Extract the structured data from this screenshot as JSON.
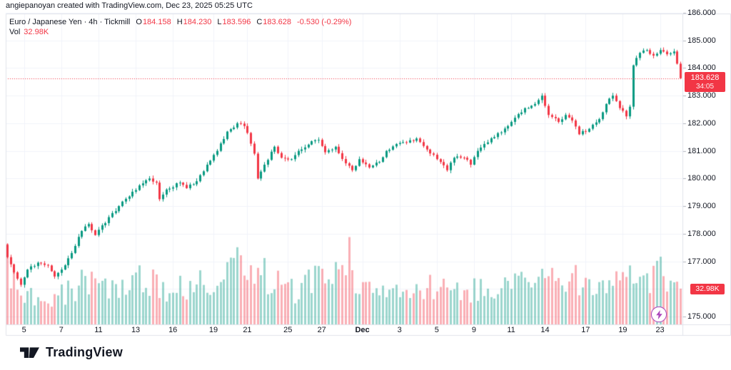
{
  "attribution": "angiepanoyan created with TradingView.com, Dec 23, 2025 05:25 UTC",
  "legend": {
    "title": "Euro / Japanese Yen · 4h · Tickmill",
    "o_label": "O",
    "o_value": "184.158",
    "h_label": "H",
    "h_value": "184.230",
    "l_label": "L",
    "l_value": "183.596",
    "c_label": "C",
    "c_value": "183.628",
    "change": "-0.530 (-0.29%)",
    "vol_label": "Vol",
    "vol_value": "32.98K"
  },
  "price_scale": {
    "last_price_badge": "183.628",
    "countdown": "34:05",
    "volume_badge": "32.98K"
  },
  "logo": {
    "text": "TradingView"
  },
  "colors": {
    "up": "#089981",
    "down": "#f23645",
    "volume_up": "rgba(8,153,129,0.40)",
    "volume_down": "rgba(242,54,69,0.40)",
    "grid": "#f0f3fa",
    "border": "#e0e3eb",
    "tick": "#b2b5be",
    "axis_text": "#131722",
    "last_price_line": "#f23645",
    "accent_purple": "#ab47bc",
    "background": "#ffffff"
  },
  "chart_data": {
    "type": "candlestick",
    "title": "Euro / Japanese Yen",
    "interval": "4h",
    "broker": "Tickmill",
    "legend_position": "top-left",
    "grid": true,
    "bar_count": 200,
    "first_open": 177.6,
    "ylim": [
      174.7,
      186.05
    ],
    "y_ticks": [
      "186.000",
      "185.000",
      "184.000",
      "183.000",
      "182.000",
      "181.000",
      "180.000",
      "179.000",
      "178.000",
      "177.000",
      "175.000"
    ],
    "y_grid_prices": [
      175,
      176,
      177,
      178,
      179,
      180,
      181,
      182,
      183,
      184,
      185,
      186
    ],
    "x_ticks": [
      {
        "label": "5",
        "i": 5
      },
      {
        "label": "7",
        "i": 16
      },
      {
        "label": "11",
        "i": 27
      },
      {
        "label": "13",
        "i": 38
      },
      {
        "label": "16",
        "i": 49
      },
      {
        "label": "19",
        "i": 61
      },
      {
        "label": "21",
        "i": 71
      },
      {
        "label": "25",
        "i": 83
      },
      {
        "label": "27",
        "i": 93
      },
      {
        "label": "Dec",
        "i": 105
      },
      {
        "label": "3",
        "i": 116
      },
      {
        "label": "5",
        "i": 127
      },
      {
        "label": "9",
        "i": 138
      },
      {
        "label": "11",
        "i": 149
      },
      {
        "label": "14",
        "i": 159
      },
      {
        "label": "17",
        "i": 171
      },
      {
        "label": "19",
        "i": 182
      },
      {
        "label": "23",
        "i": 193
      }
    ],
    "close_anchors": [
      [
        0,
        177.15
      ],
      [
        2,
        176.6
      ],
      [
        4,
        176.15
      ],
      [
        6,
        176.7
      ],
      [
        9,
        176.95
      ],
      [
        12,
        176.85
      ],
      [
        14,
        176.45
      ],
      [
        16,
        176.7
      ],
      [
        19,
        177.3
      ],
      [
        22,
        178.1
      ],
      [
        24,
        178.35
      ],
      [
        26,
        177.95
      ],
      [
        30,
        178.6
      ],
      [
        33,
        179.0
      ],
      [
        36,
        179.35
      ],
      [
        39,
        179.75
      ],
      [
        42,
        180.0
      ],
      [
        44,
        179.85
      ],
      [
        45,
        179.25
      ],
      [
        47,
        179.6
      ],
      [
        51,
        179.85
      ],
      [
        53,
        179.65
      ],
      [
        56,
        179.9
      ],
      [
        59,
        180.5
      ],
      [
        62,
        181.0
      ],
      [
        65,
        181.7
      ],
      [
        68,
        182.0
      ],
      [
        70,
        181.9
      ],
      [
        71,
        181.65
      ],
      [
        73,
        180.9
      ],
      [
        74,
        180.0
      ],
      [
        76,
        180.5
      ],
      [
        79,
        181.15
      ],
      [
        81,
        180.75
      ],
      [
        84,
        180.7
      ],
      [
        86,
        181.0
      ],
      [
        90,
        181.35
      ],
      [
        92,
        181.4
      ],
      [
        94,
        180.95
      ],
      [
        97,
        181.15
      ],
      [
        100,
        180.55
      ],
      [
        102,
        180.3
      ],
      [
        104,
        180.7
      ],
      [
        107,
        180.4
      ],
      [
        110,
        180.6
      ],
      [
        112,
        181.0
      ],
      [
        115,
        181.25
      ],
      [
        118,
        181.3
      ],
      [
        121,
        181.45
      ],
      [
        124,
        181.05
      ],
      [
        127,
        180.7
      ],
      [
        130,
        180.3
      ],
      [
        132,
        180.75
      ],
      [
        135,
        180.75
      ],
      [
        137,
        180.5
      ],
      [
        139,
        181.0
      ],
      [
        141,
        181.25
      ],
      [
        144,
        181.5
      ],
      [
        148,
        181.9
      ],
      [
        150,
        182.2
      ],
      [
        153,
        182.55
      ],
      [
        156,
        182.7
      ],
      [
        158,
        183.0
      ],
      [
        160,
        182.3
      ],
      [
        163,
        182.05
      ],
      [
        165,
        182.3
      ],
      [
        167,
        182.1
      ],
      [
        169,
        181.6
      ],
      [
        172,
        181.8
      ],
      [
        175,
        182.15
      ],
      [
        177,
        182.7
      ],
      [
        179,
        183.0
      ],
      [
        181,
        182.55
      ],
      [
        183,
        182.25
      ],
      [
        184,
        182.6
      ],
      [
        185,
        184.1
      ],
      [
        187,
        184.55
      ],
      [
        189,
        184.65
      ],
      [
        191,
        184.45
      ],
      [
        193,
        184.65
      ],
      [
        195,
        184.5
      ],
      [
        197,
        184.6
      ],
      [
        198,
        184.158
      ],
      [
        199,
        183.628
      ]
    ],
    "last_candle": {
      "o": 184.158,
      "h": 184.23,
      "l": 183.596,
      "c": 183.628,
      "volume_k": 32.98
    },
    "last_price_line": 183.628,
    "volume_unit": "K",
    "volume_anchors": [
      [
        0,
        62
      ],
      [
        1,
        45
      ],
      [
        3,
        30
      ],
      [
        6,
        26
      ],
      [
        9,
        28
      ],
      [
        12,
        24
      ],
      [
        15,
        26
      ],
      [
        18,
        30
      ],
      [
        21,
        36
      ],
      [
        24,
        40
      ],
      [
        27,
        32
      ],
      [
        30,
        30
      ],
      [
        33,
        36
      ],
      [
        36,
        40
      ],
      [
        39,
        44
      ],
      [
        42,
        42
      ],
      [
        45,
        38
      ],
      [
        48,
        28
      ],
      [
        51,
        33
      ],
      [
        54,
        36
      ],
      [
        57,
        38
      ],
      [
        60,
        40
      ],
      [
        63,
        45
      ],
      [
        66,
        50
      ],
      [
        68,
        56
      ],
      [
        70,
        48
      ],
      [
        72,
        50
      ],
      [
        74,
        70
      ],
      [
        76,
        45
      ],
      [
        79,
        38
      ],
      [
        82,
        34
      ],
      [
        85,
        30
      ],
      [
        88,
        36
      ],
      [
        91,
        40
      ],
      [
        94,
        42
      ],
      [
        97,
        45
      ],
      [
        99,
        64
      ],
      [
        101,
        60
      ],
      [
        103,
        45
      ],
      [
        106,
        38
      ],
      [
        109,
        30
      ],
      [
        112,
        34
      ],
      [
        115,
        28
      ],
      [
        118,
        32
      ],
      [
        121,
        30
      ],
      [
        124,
        33
      ],
      [
        127,
        35
      ],
      [
        130,
        31
      ],
      [
        133,
        28
      ],
      [
        136,
        30
      ],
      [
        139,
        34
      ],
      [
        142,
        32
      ],
      [
        145,
        36
      ],
      [
        148,
        34
      ],
      [
        151,
        38
      ],
      [
        154,
        36
      ],
      [
        156,
        44
      ],
      [
        158,
        40
      ],
      [
        160,
        44
      ],
      [
        162,
        34
      ],
      [
        164,
        30
      ],
      [
        166,
        38
      ],
      [
        168,
        42
      ],
      [
        170,
        36
      ],
      [
        172,
        34
      ],
      [
        174,
        38
      ],
      [
        176,
        40
      ],
      [
        178,
        42
      ],
      [
        180,
        38
      ],
      [
        182,
        36
      ],
      [
        184,
        44
      ],
      [
        185,
        54
      ],
      [
        186,
        46
      ],
      [
        187,
        50
      ],
      [
        188,
        44
      ],
      [
        189,
        48
      ],
      [
        190,
        40
      ],
      [
        191,
        44
      ],
      [
        192,
        46
      ],
      [
        193,
        50
      ],
      [
        194,
        44
      ],
      [
        195,
        48
      ],
      [
        196,
        42
      ],
      [
        197,
        46
      ],
      [
        198,
        38
      ],
      [
        199,
        32.98
      ]
    ]
  }
}
